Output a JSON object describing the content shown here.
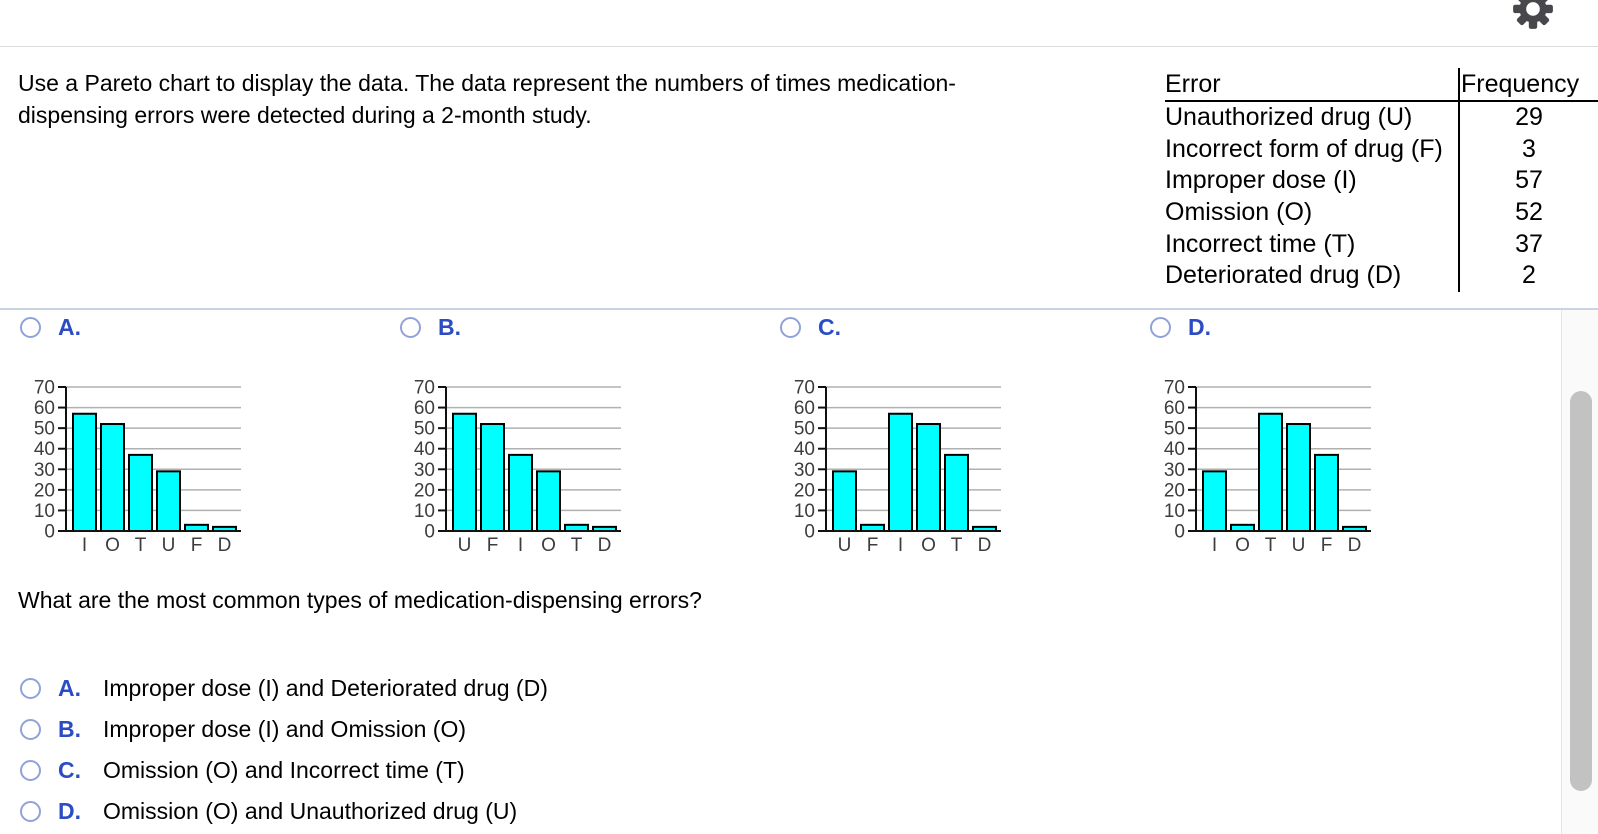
{
  "question": {
    "text": "Use a Pareto chart to display the data. The data represent the numbers of times medication-dispensing errors were detected during a 2-month study."
  },
  "data_table": {
    "headers": {
      "error": "Error",
      "frequency": "Frequency"
    },
    "rows": [
      {
        "label": "Unauthorized drug (U)",
        "value": "29"
      },
      {
        "label": "Incorrect form of drug (F)",
        "value": "3"
      },
      {
        "label": "Improper dose (I)",
        "value": "57"
      },
      {
        "label": "Omission (O)",
        "value": "52"
      },
      {
        "label": "Incorrect time (T)",
        "value": "37"
      },
      {
        "label": "Deteriorated drug (D)",
        "value": "2"
      }
    ]
  },
  "chart_options": [
    {
      "label": "A."
    },
    {
      "label": "B."
    },
    {
      "label": "C."
    },
    {
      "label": "D."
    }
  ],
  "chart_data": [
    {
      "type": "bar",
      "option": "A",
      "categories": [
        "I",
        "O",
        "T",
        "U",
        "F",
        "D"
      ],
      "values": [
        57,
        52,
        37,
        29,
        3,
        2
      ],
      "ylim": [
        0,
        70
      ],
      "yticks": [
        0,
        10,
        20,
        30,
        40,
        50,
        60,
        70
      ],
      "grid": true,
      "legend": "none",
      "title": ""
    },
    {
      "type": "bar",
      "option": "B",
      "categories": [
        "U",
        "F",
        "I",
        "O",
        "T",
        "D"
      ],
      "values": [
        57,
        52,
        37,
        29,
        3,
        2
      ],
      "ylim": [
        0,
        70
      ],
      "yticks": [
        0,
        10,
        20,
        30,
        40,
        50,
        60,
        70
      ],
      "grid": true,
      "legend": "none",
      "title": ""
    },
    {
      "type": "bar",
      "option": "C",
      "categories": [
        "U",
        "F",
        "I",
        "O",
        "T",
        "D"
      ],
      "values": [
        29,
        3,
        57,
        52,
        37,
        2
      ],
      "ylim": [
        0,
        70
      ],
      "yticks": [
        0,
        10,
        20,
        30,
        40,
        50,
        60,
        70
      ],
      "grid": true,
      "legend": "none",
      "title": ""
    },
    {
      "type": "bar",
      "option": "D",
      "categories": [
        "I",
        "O",
        "T",
        "U",
        "F",
        "D"
      ],
      "values": [
        29,
        3,
        57,
        52,
        37,
        2
      ],
      "ylim": [
        0,
        70
      ],
      "yticks": [
        0,
        10,
        20,
        30,
        40,
        50,
        60,
        70
      ],
      "grid": true,
      "legend": "none",
      "title": ""
    }
  ],
  "sub_question": {
    "text": "What are the most common types of medication-dispensing errors?"
  },
  "text_options": [
    {
      "label": "A.",
      "text": "Improper dose (I) and Deteriorated drug (D)"
    },
    {
      "label": "B.",
      "text": "Improper dose (I) and Omission (O)"
    },
    {
      "label": "C.",
      "text": "Omission (O) and Incorrect time (T)"
    },
    {
      "label": "D.",
      "text": "Omission (O) and Unauthorized drug (U)"
    }
  ],
  "colors": {
    "accent_blue": "#2C4CC4",
    "radio_ring": "#8FA2DA",
    "bar_fill": "#00FFFF",
    "bar_stroke": "#000000",
    "grid_line": "#b0b0b0",
    "axis_label": "#3d3d3d",
    "divider": "#ccd3e0",
    "gear": "#48484c"
  },
  "icons": {
    "gear": "settings-gear-icon"
  }
}
